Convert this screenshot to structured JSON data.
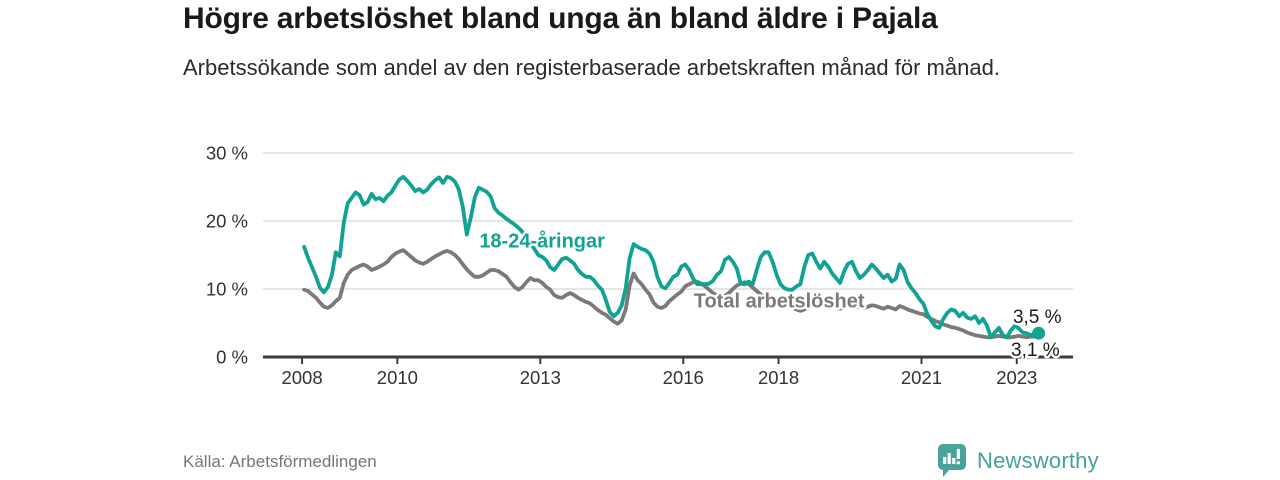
{
  "header": {
    "title": "Högre arbetslöshet bland unga än bland äldre i Pajala",
    "subtitle": "Arbetssökande som andel av den registerbaserade arbetskraften månad för månad."
  },
  "footer": {
    "source": "Källa: Arbetsförmedlingen",
    "logo_text": "Newsworthy",
    "logo_icon": "newsworthy-barchart-speech-bubble-icon"
  },
  "colors": {
    "youth_line": "#10a293",
    "total_line": "#7a7a7a",
    "grid": "#d8d8d8",
    "axis": "#3c3c3c",
    "axis_text": "#333333",
    "end_label_text": "#1a1a1a",
    "logo": "#4ba29b"
  },
  "chart_data": {
    "type": "line",
    "title": "Högre arbetslöshet bland unga än bland äldre i Pajala",
    "subtitle": "Arbetssökande som andel av den registerbaserade arbetskraften månad för månad.",
    "x_unit": "decimal_year_monthly",
    "x_start_year": 2008,
    "x_months_per_step": 1,
    "xlim": [
      2007.18,
      2024.18
    ],
    "ylim": [
      0,
      30
    ],
    "grid": true,
    "legend_position": "inline-annotations",
    "y_ticks": [
      {
        "value": 0,
        "label": "0 %"
      },
      {
        "value": 10,
        "label": "10 %"
      },
      {
        "value": 20,
        "label": "20 %"
      },
      {
        "value": 30,
        "label": "30 %"
      }
    ],
    "x_ticks": [
      {
        "value": 2008,
        "label": "2008"
      },
      {
        "value": 2010,
        "label": "2010"
      },
      {
        "value": 2013,
        "label": "2013"
      },
      {
        "value": 2016,
        "label": "2016"
      },
      {
        "value": 2018,
        "label": "2018"
      },
      {
        "value": 2021,
        "label": "2021"
      },
      {
        "value": 2023,
        "label": "2023"
      }
    ],
    "series": [
      {
        "name": "18-24-åringar",
        "color_key": "youth_line",
        "end_dot": true,
        "end_value_label": "3,5 %",
        "values": [
          16.2,
          14.6,
          13.2,
          11.8,
          10.2,
          9.5,
          10.3,
          12.0,
          15.4,
          14.8,
          19.8,
          22.6,
          23.4,
          24.2,
          23.8,
          22.4,
          22.8,
          24.0,
          23.2,
          23.4,
          22.9,
          23.7,
          24.2,
          25.2,
          26.1,
          26.5,
          25.9,
          25.2,
          24.4,
          24.7,
          24.2,
          24.6,
          25.4,
          26.0,
          26.4,
          25.6,
          26.5,
          26.3,
          25.8,
          24.6,
          22.0,
          18.0,
          20.5,
          23.5,
          24.9,
          24.6,
          24.3,
          23.6,
          21.9,
          21.2,
          20.8,
          20.3,
          19.9,
          19.5,
          19.0,
          18.4,
          17.6,
          16.8,
          15.9,
          15.0,
          14.7,
          14.2,
          13.2,
          12.8,
          13.6,
          14.4,
          14.6,
          14.2,
          13.7,
          12.8,
          12.2,
          11.8,
          11.8,
          11.3,
          10.5,
          9.9,
          8.4,
          6.6,
          6.0,
          6.5,
          7.6,
          10.1,
          14.5,
          16.6,
          16.2,
          15.9,
          15.7,
          15.2,
          14.0,
          11.8,
          10.4,
          10.1,
          10.9,
          11.8,
          12.1,
          13.3,
          13.6,
          12.8,
          11.5,
          10.7,
          10.7,
          10.7,
          10.8,
          11.2,
          12.1,
          12.6,
          14.3,
          14.7,
          14.0,
          13.0,
          10.8,
          10.7,
          11.1,
          10.7,
          12.8,
          14.7,
          15.4,
          15.4,
          14.0,
          12.1,
          10.7,
          10.1,
          9.9,
          9.9,
          10.4,
          10.7,
          13.3,
          15.0,
          15.2,
          14.0,
          13.0,
          14.0,
          13.3,
          12.3,
          11.6,
          10.9,
          12.6,
          13.7,
          14.0,
          12.6,
          11.6,
          12.1,
          12.8,
          13.6,
          13.0,
          12.3,
          11.6,
          12.1,
          11.1,
          11.5,
          13.6,
          12.8,
          11.0,
          10.1,
          9.4,
          8.5,
          7.8,
          6.3,
          5.3,
          4.5,
          4.3,
          5.6,
          6.5,
          7.0,
          6.8,
          6.0,
          6.5,
          5.8,
          5.6,
          6.0,
          5.0,
          5.6,
          4.6,
          2.9,
          3.6,
          4.3,
          3.2,
          2.9,
          3.9,
          4.6,
          4.2,
          3.6,
          3.5,
          3.2,
          3.4,
          3.5
        ]
      },
      {
        "name": "Total arbetslöshet",
        "color_key": "total_line",
        "end_dot": false,
        "end_value_label": "3,1 %",
        "values": [
          9.9,
          9.7,
          9.2,
          8.7,
          8.0,
          7.4,
          7.2,
          7.6,
          8.2,
          8.7,
          10.9,
          12.1,
          12.8,
          13.1,
          13.4,
          13.6,
          13.3,
          12.8,
          13.0,
          13.3,
          13.6,
          14.0,
          14.7,
          15.2,
          15.5,
          15.7,
          15.2,
          14.7,
          14.2,
          13.9,
          13.7,
          14.0,
          14.4,
          14.8,
          15.1,
          15.4,
          15.6,
          15.4,
          15.0,
          14.4,
          13.6,
          12.9,
          12.3,
          11.8,
          11.8,
          12.0,
          12.4,
          12.8,
          12.8,
          12.6,
          12.2,
          11.8,
          11.0,
          10.3,
          9.9,
          10.3,
          11.0,
          11.6,
          11.3,
          11.3,
          10.9,
          10.3,
          9.9,
          9.1,
          8.8,
          8.7,
          9.1,
          9.4,
          9.1,
          8.7,
          8.4,
          8.1,
          7.9,
          7.4,
          6.9,
          6.5,
          6.2,
          5.7,
          5.2,
          4.9,
          5.4,
          7.0,
          10.5,
          12.3,
          11.3,
          10.7,
          9.9,
          9.2,
          8.0,
          7.4,
          7.2,
          7.5,
          8.2,
          8.7,
          9.2,
          9.6,
          10.4,
          10.7,
          11.0,
          11.1,
          10.8,
          10.4,
          9.9,
          9.4,
          9.0,
          8.7,
          9.0,
          9.4,
          10.0,
          10.5,
          10.8,
          11.0,
          10.7,
          10.2,
          9.7,
          9.2,
          8.8,
          8.5,
          8.3,
          8.2,
          8.0,
          7.8,
          7.6,
          7.3,
          7.0,
          6.8,
          7.0,
          7.3,
          7.7,
          8.0,
          8.2,
          8.0,
          7.8,
          7.5,
          7.3,
          7.1,
          7.3,
          7.6,
          7.8,
          7.6,
          7.3,
          7.2,
          7.4,
          7.6,
          7.5,
          7.3,
          7.1,
          7.4,
          7.2,
          7.0,
          7.5,
          7.3,
          7.0,
          6.8,
          6.6,
          6.4,
          6.3,
          5.9,
          5.6,
          5.3,
          5.1,
          4.8,
          4.6,
          4.4,
          4.3,
          4.1,
          3.9,
          3.6,
          3.4,
          3.2,
          3.1,
          3.0,
          2.9,
          2.9,
          3.0,
          3.1,
          3.0,
          2.9,
          2.9,
          3.0,
          3.1,
          3.0,
          2.9,
          3.0,
          3.0,
          3.1
        ]
      }
    ],
    "annotations": [
      {
        "name": "series-label-youth",
        "text": "18-24-åringar",
        "x": 2011.72,
        "y": 16.1,
        "color_key": "youth_line",
        "cls": "series-label"
      },
      {
        "name": "series-label-total",
        "text": "Total arbetslöshet",
        "x": 2016.22,
        "y": 7.3,
        "color_key": "total_line",
        "cls": "series-label"
      },
      {
        "name": "end-value-youth",
        "text": "3,5 %",
        "x": 2022.92,
        "y": 5.0,
        "color_key": "end_label_text",
        "cls": "end-label"
      },
      {
        "name": "end-value-total",
        "text": "3,1 %",
        "x": 2022.88,
        "y": 0.15,
        "color_key": "end_label_text",
        "cls": "end-label"
      }
    ]
  }
}
